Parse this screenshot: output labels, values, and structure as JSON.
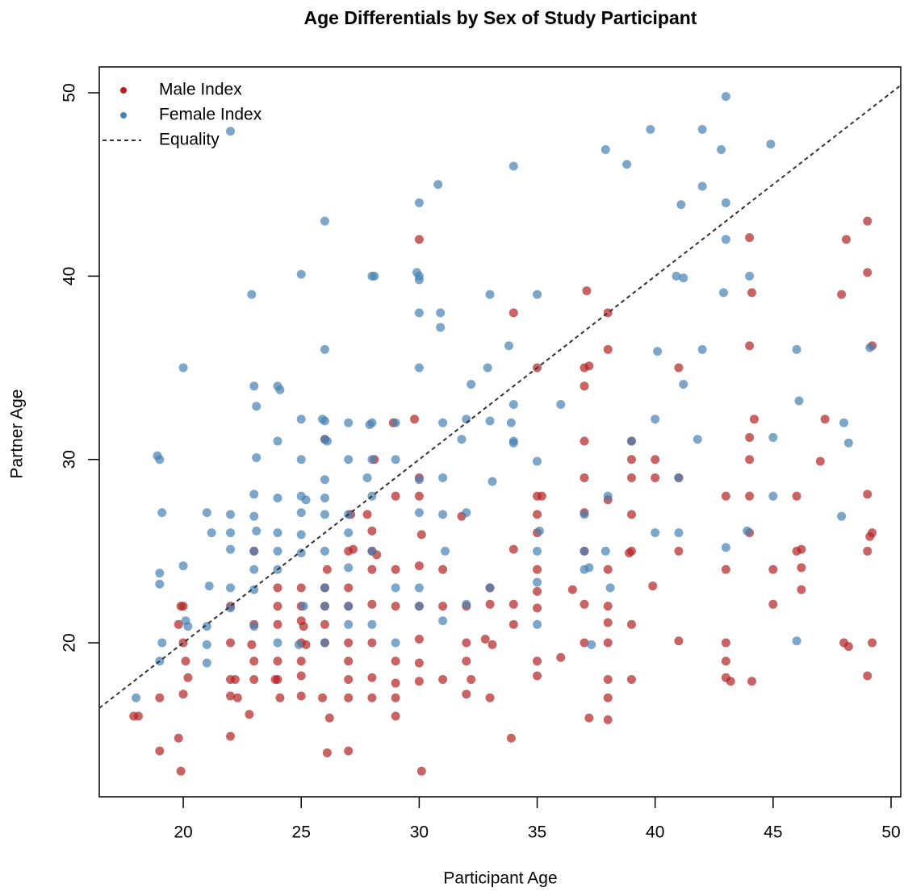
{
  "chart_data": {
    "type": "scatter",
    "title": "Age Differentials by Sex of Study Participant",
    "x_label": "Participant Age",
    "y_label": "Partner Age",
    "xlim": [
      16.44,
      50.41
    ],
    "ylim": [
      11.6,
      51.41
    ],
    "xticks": [
      20,
      25,
      30,
      35,
      40,
      45,
      50
    ],
    "yticks": [
      20,
      30,
      40,
      50
    ],
    "legend": "top-left",
    "series": [
      {
        "name": "Male Index",
        "color": "#b22222",
        "x": [
          17.9,
          18.1,
          19,
          19,
          19.9,
          20,
          19.8,
          20,
          20,
          19.8,
          19.9,
          20.1,
          20.2,
          22,
          22,
          22,
          22,
          22,
          22.2,
          22.3,
          22.9,
          23,
          23,
          23,
          23,
          22.8,
          24,
          24,
          24,
          24,
          24,
          24.1,
          23.9,
          25,
          25,
          25,
          25,
          25,
          25,
          25,
          25.1,
          25.2,
          26,
          26,
          26,
          26,
          25.9,
          26,
          26.1,
          26.2,
          26.1,
          27,
          27,
          27,
          27,
          27,
          27,
          27,
          27,
          27.1,
          27.2,
          27.8,
          28,
          28,
          28,
          28,
          28,
          28,
          28,
          28.1,
          28.2,
          29,
          29,
          29,
          29,
          29,
          28.9,
          29,
          29,
          30,
          30,
          30,
          30,
          30,
          30,
          30,
          30,
          30.1,
          30.1,
          29.8,
          31,
          31,
          31,
          31.8,
          32,
          32,
          32,
          32,
          32.2,
          32.8,
          33,
          33,
          33,
          33.1,
          34,
          34,
          34,
          34,
          33.9,
          35,
          35,
          35,
          35,
          35,
          35,
          35,
          35,
          35,
          35.2,
          36,
          36.5,
          37,
          37,
          37,
          37,
          37,
          37,
          37,
          37,
          37.1,
          37.2,
          37.2,
          38,
          38,
          38,
          38,
          38,
          38,
          38,
          38,
          38,
          38,
          39,
          39,
          39,
          39,
          39,
          39,
          39,
          38.9,
          39.9,
          40,
          40,
          41,
          41,
          41,
          41,
          43,
          43,
          43,
          43,
          43,
          43.2,
          44,
          44,
          44,
          44,
          44,
          44,
          44.1,
          44.2,
          44.1,
          45,
          45,
          46,
          46,
          46.2,
          46.2,
          46.2,
          47,
          47.2,
          47.9,
          48,
          48.1,
          48.2,
          49,
          49,
          49,
          49,
          49,
          49.1,
          49.2,
          49.2,
          49.2
        ],
        "values": [
          16,
          16,
          14.1,
          17,
          22,
          22,
          21,
          20,
          17.2,
          14.8,
          13,
          19,
          18.1,
          22,
          20,
          18,
          17.1,
          14.9,
          18,
          17,
          19.9,
          25,
          21,
          19,
          18,
          16.1,
          23,
          22,
          21,
          19,
          18,
          17,
          18,
          23,
          22,
          21.2,
          20,
          19,
          18.2,
          17.1,
          20.9,
          19.9,
          23,
          22,
          21,
          20,
          17,
          31.1,
          24,
          15.9,
          14,
          25,
          23,
          22,
          20,
          19,
          18,
          17,
          14.1,
          27,
          25.1,
          27,
          26.1,
          25,
          24,
          22.1,
          20,
          18.1,
          17,
          30,
          24.8,
          28,
          22,
          19,
          17,
          16,
          32,
          24,
          17.8,
          42,
          29,
          28,
          24.2,
          22,
          20.2,
          18.9,
          17.9,
          25.9,
          13,
          32.2,
          24,
          22,
          18,
          26.9,
          22,
          20,
          19,
          17.2,
          18,
          20.2,
          23,
          22.1,
          17,
          19.9,
          38,
          25.1,
          22.1,
          21,
          14.8,
          35,
          28,
          27,
          26,
          24,
          22.8,
          21.9,
          19,
          18.2,
          28,
          19.2,
          22.9,
          35,
          34,
          31,
          29,
          27.1,
          25,
          22.1,
          20,
          39.2,
          35.1,
          15.9,
          38,
          36,
          27.8,
          24,
          22,
          21.1,
          20,
          18,
          17,
          15.8,
          31,
          30,
          29,
          27,
          25,
          21,
          18,
          24.9,
          23.1,
          30,
          29,
          35,
          29,
          25,
          20.1,
          28,
          24,
          20,
          19,
          18.1,
          17.9,
          42.1,
          36.2,
          31.2,
          30,
          28,
          26,
          39.1,
          32.2,
          17.9,
          24,
          22.1,
          28,
          25,
          25.1,
          24.1,
          22.9,
          29.9,
          32.2,
          39,
          20,
          42,
          19.8,
          43,
          40.2,
          28.1,
          25,
          18.2,
          25.8,
          26,
          20,
          36.2
        ]
      },
      {
        "name": "Female Index",
        "color": "#4682b4",
        "x": [
          18,
          18.9,
          19,
          19.1,
          19,
          19,
          19,
          19.1,
          20,
          20,
          20.1,
          20.2,
          21,
          21,
          21.2,
          21.1,
          21,
          21,
          22,
          22,
          22,
          22,
          22,
          22,
          22.9,
          23,
          23.1,
          23.1,
          23,
          23,
          23,
          23,
          23,
          23,
          23.1,
          24,
          24,
          24,
          24,
          24,
          24,
          24,
          24.1,
          25,
          25,
          25,
          25,
          25,
          25,
          25,
          25.1,
          24.9,
          25.2,
          26,
          26,
          26,
          26,
          26,
          26,
          26,
          26,
          26,
          26,
          26,
          25.9,
          26.1,
          27,
          27,
          27,
          27,
          27,
          27,
          27,
          27.9,
          28,
          28.1,
          28,
          28,
          28,
          28,
          28,
          27.8,
          29,
          29,
          29,
          29,
          30,
          30,
          30,
          29.9,
          30,
          30,
          30,
          30,
          30,
          30,
          30.8,
          30.9,
          30.9,
          31,
          31,
          31,
          31.1,
          31,
          31.8,
          32,
          32,
          32,
          32.2,
          33,
          32.9,
          33,
          33.1,
          33,
          34,
          33.8,
          34,
          34,
          34,
          33.9,
          35,
          35,
          35.1,
          35,
          35,
          35,
          36,
          37,
          37,
          37,
          37.2,
          37.9,
          37.9,
          38,
          38.1,
          37.3,
          38.8,
          39,
          39.8,
          40.1,
          40,
          40,
          40.9,
          41,
          41,
          41.1,
          41.2,
          41.2,
          41.8,
          42,
          42,
          42,
          43,
          42.8,
          42.9,
          43,
          43,
          43,
          43.9,
          44,
          44.9,
          45,
          45,
          46,
          46.1,
          46,
          47.9,
          48,
          48.2,
          49.1
        ],
        "values": [
          17,
          30.2,
          30,
          27.1,
          23.8,
          23.2,
          19,
          20,
          35,
          24.2,
          21.2,
          20.9,
          20.9,
          27.1,
          26,
          23.1,
          19.9,
          18.9,
          27,
          26,
          25.1,
          23,
          21.9,
          47.9,
          39,
          34,
          32.9,
          30.1,
          28.1,
          26.9,
          25,
          24,
          22.9,
          20.9,
          26.1,
          34,
          31,
          27.9,
          26,
          25,
          24,
          20,
          33.8,
          40.1,
          32.2,
          30,
          28,
          27.1,
          25.9,
          24.9,
          22,
          19.9,
          27.8,
          43,
          36,
          32.1,
          31.1,
          28.9,
          27.9,
          27,
          25,
          23,
          22,
          20,
          32.2,
          31,
          32,
          30,
          27,
          26,
          24.1,
          22,
          21,
          31.9,
          40,
          40,
          32,
          30,
          28,
          25,
          21,
          29,
          32,
          30,
          23,
          20,
          44,
          40,
          39.8,
          40.2,
          38,
          35,
          28.9,
          27.1,
          23,
          22,
          45,
          38,
          37.2,
          32,
          29,
          27,
          25,
          21.2,
          31.1,
          32.2,
          27.1,
          22.1,
          34.1,
          39,
          35,
          32.1,
          28.8,
          23,
          46,
          36.2,
          33,
          31,
          30.9,
          32,
          39,
          29.9,
          26.1,
          25,
          23.3,
          21,
          33,
          27,
          25,
          24,
          24.1,
          46.9,
          25,
          28,
          23,
          19.9,
          46.1,
          31,
          48,
          35.9,
          32.2,
          26,
          40,
          26,
          29,
          43.9,
          39.9,
          34.1,
          31.1,
          48,
          44.9,
          36,
          49.8,
          46.9,
          39.1,
          44,
          42,
          25.2,
          26.1,
          40,
          47.2,
          31.2,
          28,
          36,
          33.2,
          20.1,
          26.9,
          32,
          30.9,
          36.1
        ]
      },
      {
        "name": "Equality",
        "type": "line",
        "dash": "dashed",
        "color": "#333333",
        "x": [
          16.44,
          50.41
        ],
        "values": [
          16.44,
          50.41
        ]
      }
    ]
  }
}
